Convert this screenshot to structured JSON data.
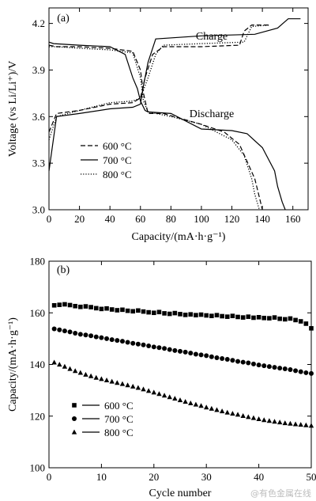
{
  "chart_data": [
    {
      "panel": "(a)",
      "type": "line",
      "xlabel": "Capacity/(mA·h·g⁻¹)",
      "ylabel": "Voltage (vs Li/Li⁺)/V",
      "xlim": [
        0,
        170
      ],
      "ylim": [
        3.0,
        4.3
      ],
      "xticks": [
        "0",
        "20",
        "40",
        "60",
        "80",
        "100",
        "120",
        "140",
        "160"
      ],
      "yticks": [
        "3.0",
        "3.3",
        "3.6",
        "3.9",
        "4.2"
      ],
      "annotations": [
        "Charge",
        "Discharge"
      ],
      "legend": {
        "placement": "lower-left",
        "entries": [
          "600 °C",
          "700 °C",
          "800 °C"
        ]
      },
      "series": [
        {
          "name": "600 °C",
          "style": "dashed",
          "charge": {
            "x": [
              0,
              5,
              20,
              40,
              55,
              60,
              63,
              68,
              75,
              100,
              125,
              128,
              133,
              145
            ],
            "y": [
              3.5,
              3.62,
              3.64,
              3.68,
              3.69,
              3.72,
              3.85,
              4.0,
              4.05,
              4.05,
              4.06,
              4.15,
              4.19,
              4.19
            ]
          },
          "discharge": {
            "x": [
              0,
              5,
              20,
              40,
              55,
              60,
              62,
              65,
              75,
              100,
              115,
              125,
              135,
              138,
              140
            ],
            "y": [
              4.06,
              4.05,
              4.05,
              4.04,
              4.02,
              3.9,
              3.75,
              3.62,
              3.62,
              3.55,
              3.5,
              3.42,
              3.2,
              3.08,
              3.0
            ]
          }
        },
        {
          "name": "700 °C",
          "style": "solid",
          "charge": {
            "x": [
              0,
              5,
              20,
              40,
              55,
              60,
              62,
              65,
              70,
              100,
              135,
              150,
              157,
              160,
              165
            ],
            "y": [
              3.25,
              3.6,
              3.62,
              3.65,
              3.66,
              3.68,
              3.8,
              3.95,
              4.1,
              4.12,
              4.13,
              4.17,
              4.23,
              4.23,
              4.23
            ]
          },
          "discharge": {
            "x": [
              0,
              3,
              20,
              40,
              50,
              55,
              58,
              60,
              63,
              65,
              80,
              100,
              120,
              130,
              140,
              148,
              150,
              153,
              155
            ],
            "y": [
              4.08,
              4.07,
              4.06,
              4.05,
              4.0,
              3.85,
              3.78,
              3.7,
              3.64,
              3.63,
              3.62,
              3.52,
              3.51,
              3.49,
              3.4,
              3.25,
              3.15,
              3.05,
              3.0
            ]
          }
        },
        {
          "name": "800 °C",
          "style": "dotted",
          "charge": {
            "x": [
              0,
              5,
              20,
              40,
              55,
              60,
              65,
              70,
              75,
              100,
              128,
              133,
              145
            ],
            "y": [
              3.45,
              3.6,
              3.64,
              3.69,
              3.7,
              3.72,
              3.85,
              4.0,
              4.06,
              4.07,
              4.08,
              4.18,
              4.19
            ]
          },
          "discharge": {
            "x": [
              0,
              5,
              20,
              40,
              55,
              60,
              62,
              65,
              80,
              100,
              110,
              120,
              128,
              133,
              135,
              138
            ],
            "y": [
              4.05,
              4.05,
              4.04,
              4.03,
              4.01,
              3.85,
              3.7,
              3.63,
              3.6,
              3.55,
              3.5,
              3.45,
              3.35,
              3.2,
              3.1,
              3.0
            ]
          }
        }
      ]
    },
    {
      "panel": "(b)",
      "type": "scatter",
      "xlabel": "Cycle number",
      "ylabel": "Capacity/(mA·h·g⁻¹)",
      "xlim": [
        0,
        50
      ],
      "ylim": [
        100,
        180
      ],
      "xticks": [
        "0",
        "10",
        "20",
        "30",
        "40",
        "50"
      ],
      "yticks": [
        "100",
        "120",
        "140",
        "160",
        "180"
      ],
      "legend": {
        "placement": "lower-left",
        "entries": [
          "600 °C",
          "700 °C",
          "800 °C"
        ]
      },
      "x": [
        1,
        2,
        3,
        4,
        5,
        6,
        7,
        8,
        9,
        10,
        11,
        12,
        13,
        14,
        15,
        16,
        17,
        18,
        19,
        20,
        21,
        22,
        23,
        24,
        25,
        26,
        27,
        28,
        29,
        30,
        31,
        32,
        33,
        34,
        35,
        36,
        37,
        38,
        39,
        40,
        41,
        42,
        43,
        44,
        45,
        46,
        47,
        48,
        49,
        50
      ],
      "series": [
        {
          "name": "600 °C",
          "marker": "square",
          "values": [
            162.9,
            163.1,
            163.3,
            163.0,
            162.6,
            162.3,
            162.5,
            162.2,
            161.8,
            161.5,
            161.7,
            161.3,
            161.0,
            161.2,
            160.8,
            160.6,
            160.9,
            160.5,
            160.2,
            160.0,
            160.3,
            159.8,
            159.6,
            159.9,
            159.5,
            159.2,
            159.4,
            159.1,
            159.3,
            159.0,
            158.8,
            159.1,
            158.7,
            158.5,
            158.8,
            158.4,
            158.2,
            158.5,
            158.1,
            158.3,
            158.0,
            157.9,
            158.2,
            157.7,
            157.5,
            157.8,
            157.2,
            156.7,
            155.8,
            154.0
          ]
        },
        {
          "name": "700 °C",
          "marker": "circle",
          "values": [
            153.8,
            153.4,
            153.0,
            152.6,
            152.1,
            151.7,
            151.4,
            151.1,
            150.7,
            150.4,
            150.0,
            149.6,
            149.3,
            149.0,
            148.6,
            148.2,
            147.9,
            147.6,
            147.2,
            146.8,
            146.5,
            146.2,
            145.8,
            145.4,
            145.1,
            144.8,
            144.4,
            144.0,
            143.7,
            143.4,
            143.0,
            142.6,
            142.3,
            142.0,
            141.6,
            141.2,
            140.9,
            140.6,
            140.2,
            139.8,
            139.5,
            139.2,
            138.9,
            138.6,
            138.3,
            138.0,
            137.6,
            137.2,
            136.8,
            136.5
          ]
        },
        {
          "name": "800 °C",
          "marker": "triangle",
          "values": [
            140.8,
            140.0,
            139.2,
            138.3,
            137.5,
            136.8,
            136.1,
            135.5,
            134.9,
            134.4,
            133.9,
            133.4,
            132.9,
            132.5,
            132.0,
            131.5,
            131.0,
            130.4,
            129.8,
            129.2,
            128.6,
            128.0,
            127.4,
            126.8,
            126.2,
            125.6,
            125.0,
            124.5,
            124.0,
            123.4,
            122.9,
            122.4,
            121.9,
            121.4,
            121.0,
            120.6,
            120.1,
            119.7,
            119.3,
            118.9,
            118.5,
            118.2,
            117.9,
            117.6,
            117.3,
            117.1,
            116.9,
            116.7,
            116.5,
            116.3
          ]
        }
      ]
    }
  ],
  "watermark": "@有色金属在线"
}
